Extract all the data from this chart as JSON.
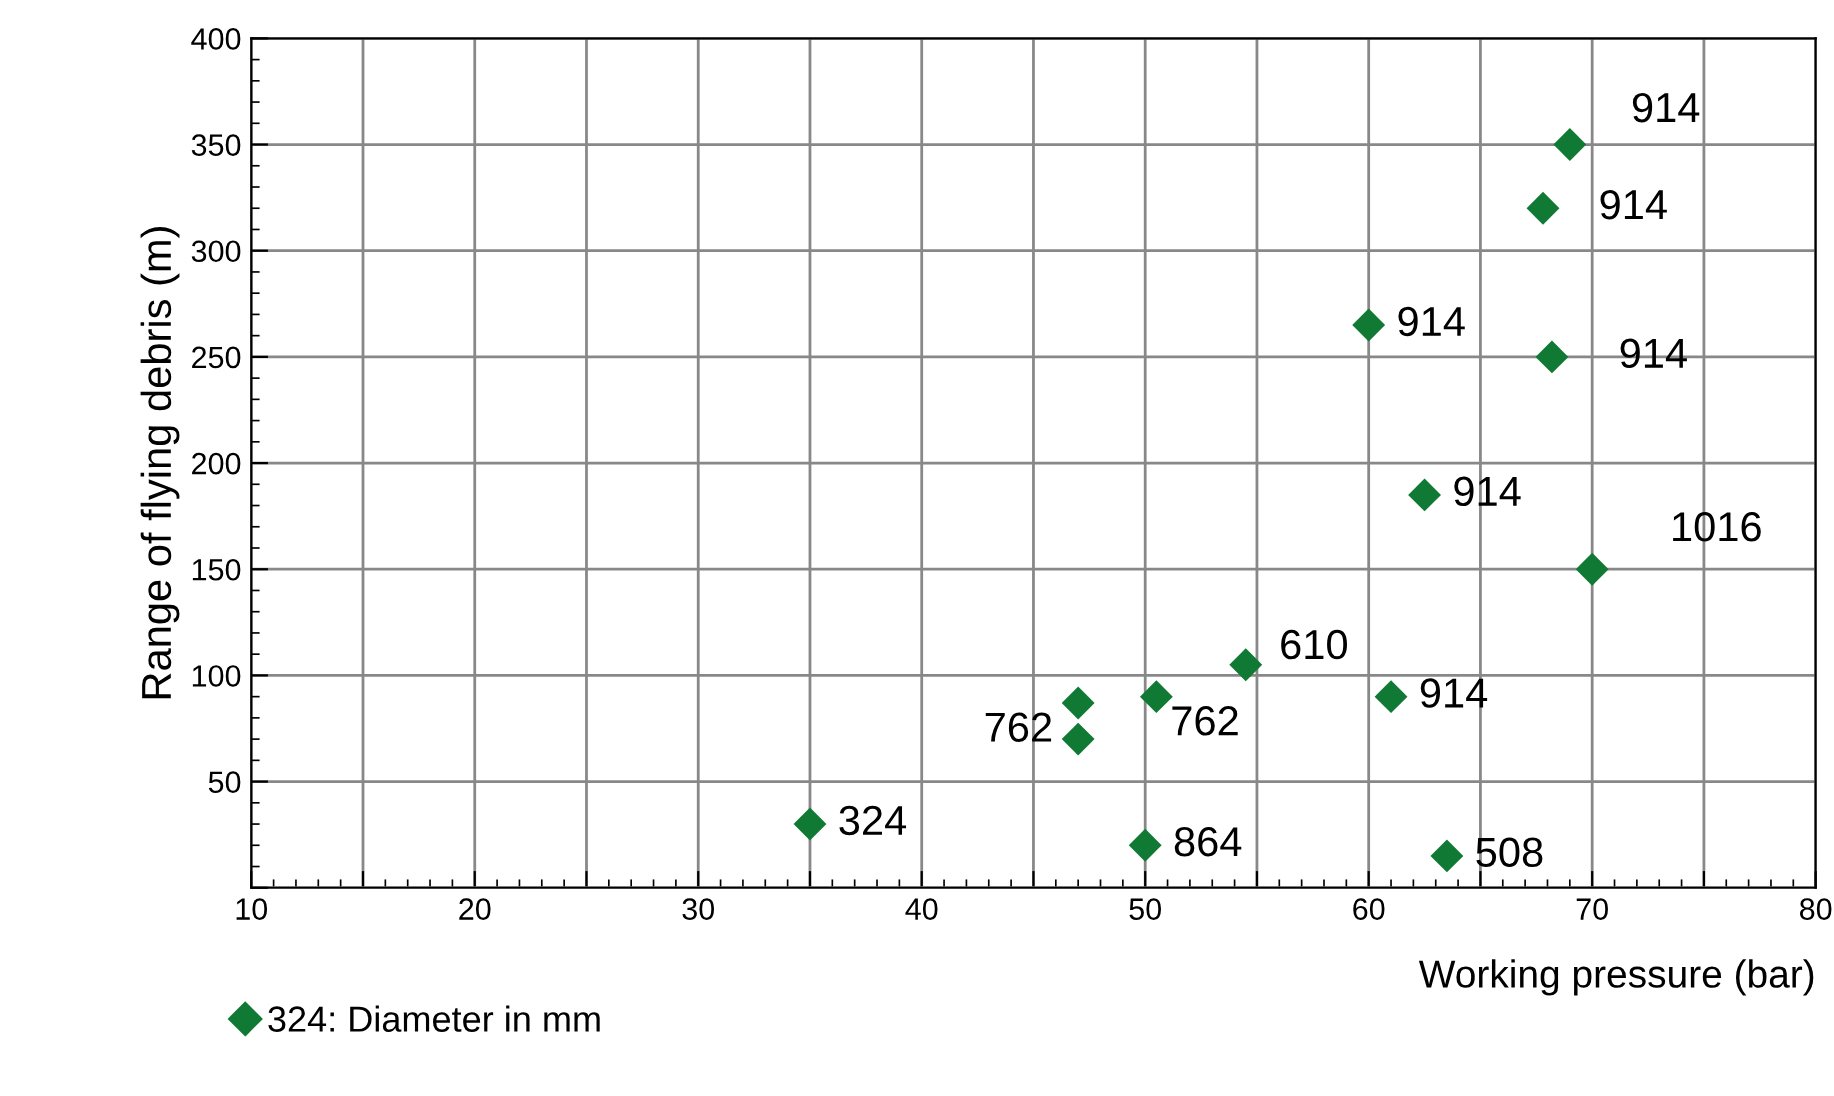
{
  "chart_data": {
    "type": "scatter",
    "xlabel": "Working pressure (bar)",
    "ylabel": "Range of flying debris (m)",
    "series": [
      {
        "name": "324: Diameter in mm",
        "color": "#107a35",
        "marker": "diamond",
        "x": [
          35,
          47,
          47,
          50,
          50.5,
          54.5,
          60,
          61,
          62.5,
          63.5,
          67.8,
          68.2,
          69,
          70
        ],
        "values": [
          30,
          87,
          70,
          20,
          90,
          105,
          265,
          90,
          185,
          15,
          320,
          250,
          350,
          150
        ]
      }
    ],
    "annotations": [
      {
        "text": "324",
        "x": 35,
        "y": 30
      },
      {
        "text": "762",
        "x": 47,
        "y": 87
      },
      {
        "text": "864",
        "x": 50,
        "y": 20
      },
      {
        "text": "762",
        "x": 50.5,
        "y": 90
      },
      {
        "text": "610",
        "x": 54.5,
        "y": 105
      },
      {
        "text": "914",
        "x": 60,
        "y": 265
      },
      {
        "text": "914",
        "x": 61,
        "y": 90
      },
      {
        "text": "914",
        "x": 62.5,
        "y": 185
      },
      {
        "text": "508",
        "x": 63.5,
        "y": 15
      },
      {
        "text": "914",
        "x": 67.8,
        "y": 320
      },
      {
        "text": "914",
        "x": 68.2,
        "y": 250
      },
      {
        "text": "914",
        "x": 69,
        "y": 350
      },
      {
        "text": "1016",
        "x": 70,
        "y": 150
      }
    ],
    "xlim": [
      10,
      80
    ],
    "ylim": [
      0,
      400
    ],
    "xticks": [
      10,
      {
        "value": 15,
        "label": null
      },
      20,
      {
        "value": 25,
        "label": null
      },
      30,
      {
        "value": 35,
        "label": null
      },
      40,
      {
        "value": 45,
        "label": null
      },
      50,
      {
        "value": 55,
        "label": null
      },
      60,
      {
        "value": 65,
        "label": null
      },
      70,
      {
        "value": 75,
        "label": null
      },
      80
    ],
    "yticks": [
      {
        "value": 0,
        "label": null
      },
      50,
      100,
      150,
      200,
      250,
      300,
      350,
      400
    ],
    "grid": true,
    "legend": "bottom left"
  }
}
